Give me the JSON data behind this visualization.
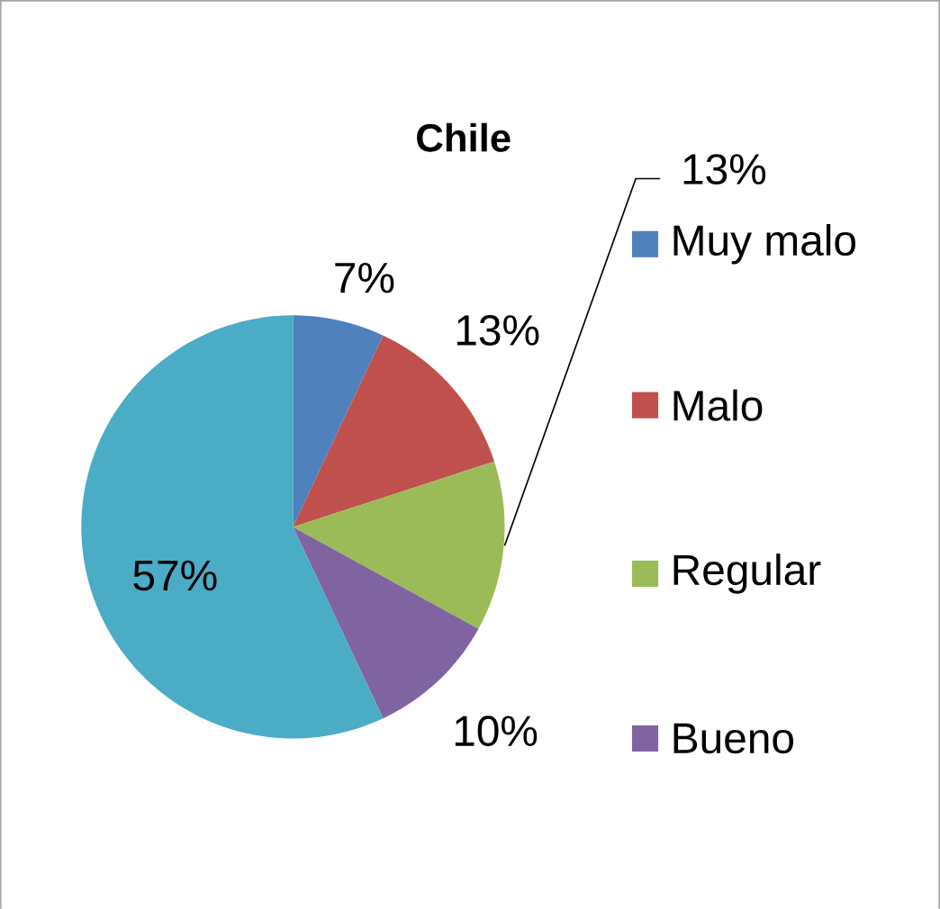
{
  "chart_data": {
    "type": "pie",
    "title": "Chile",
    "categories": [
      "Muy malo",
      "Malo",
      "Regular",
      "Bueno",
      null
    ],
    "values": [
      7,
      13,
      13,
      10,
      57
    ],
    "value_labels": [
      "7%",
      "13%",
      "13%",
      "10%",
      "57%"
    ],
    "colors": [
      "#4f81bd",
      "#c0504d",
      "#9bbb59",
      "#8064a2",
      "#4bacc6"
    ],
    "legend": "right"
  }
}
